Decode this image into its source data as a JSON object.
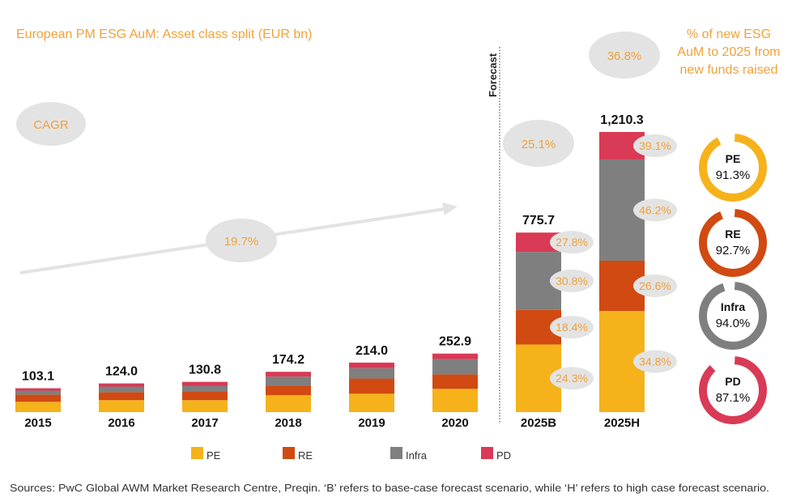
{
  "colors": {
    "PE": "#F5B21B",
    "RE": "#D04A12",
    "Infra": "#7F7F7F",
    "PD": "#D93A56",
    "accent": "#F0A23A",
    "bubble": "#E3E3E3"
  },
  "chart_data": {
    "type": "bar",
    "stacked": true,
    "title": "European PM ESG AuM: Asset class split (EUR bn)",
    "categories": [
      "2015",
      "2016",
      "2017",
      "2018",
      "2019",
      "2020",
      "2025B",
      "2025H"
    ],
    "totals": [
      "103.1",
      "124.0",
      "130.8",
      "174.2",
      "214.0",
      "252.9",
      "775.7",
      "1,210.3"
    ],
    "total_values": [
      103.1,
      124.0,
      130.8,
      174.2,
      214.0,
      252.9,
      775.7,
      1210.3
    ],
    "series": [
      {
        "name": "PE",
        "values": [
          44.7,
          51.7,
          51.6,
          73.2,
          79.4,
          100.5,
          292.2,
          437.3
        ]
      },
      {
        "name": "RE",
        "values": [
          30.9,
          34.4,
          37.9,
          41.8,
          65.6,
          62.4,
          149.6,
          216.9
        ]
      },
      {
        "name": "Infra",
        "values": [
          17.2,
          24.1,
          24.1,
          38.3,
          44.8,
          65.8,
          250.4,
          437.3
        ]
      },
      {
        "name": "PD",
        "values": [
          10.3,
          13.8,
          17.2,
          20.9,
          24.2,
          24.2,
          83.5,
          118.9
        ]
      }
    ],
    "segment_cagr_labels": {
      "2025B": {
        "PE": "24.3%",
        "RE": "18.4%",
        "Infra": "30.8%",
        "PD": "27.8%"
      },
      "2025H": {
        "PE": "34.8%",
        "RE": "26.6%",
        "Infra": "46.2%",
        "PD": "39.1%"
      }
    },
    "cagr_label": "CAGR",
    "cagr_historical": "19.7%",
    "cagr_2025B": "25.1%",
    "cagr_2025H": "36.8%",
    "forecast_label": "Forecast",
    "legend": [
      "PE",
      "RE",
      "Infra",
      "PD"
    ],
    "legend_position": "bottom",
    "new_funds_title": [
      "% of new ESG",
      "AuM to 2025 from",
      "new funds raised"
    ],
    "new_funds_share": [
      {
        "name": "PE",
        "label": "91.3%",
        "value": 91.3
      },
      {
        "name": "RE",
        "label": "92.7%",
        "value": 92.7
      },
      {
        "name": "Infra",
        "label": "94.0%",
        "value": 94.0
      },
      {
        "name": "PD",
        "label": "87.1%",
        "value": 87.1
      }
    ],
    "source": "Sources: PwC Global AWM Market Research Centre, Preqin. ‘B’ refers to base-case forecast scenario, while ‘H’ refers to high case forecast scenario."
  }
}
